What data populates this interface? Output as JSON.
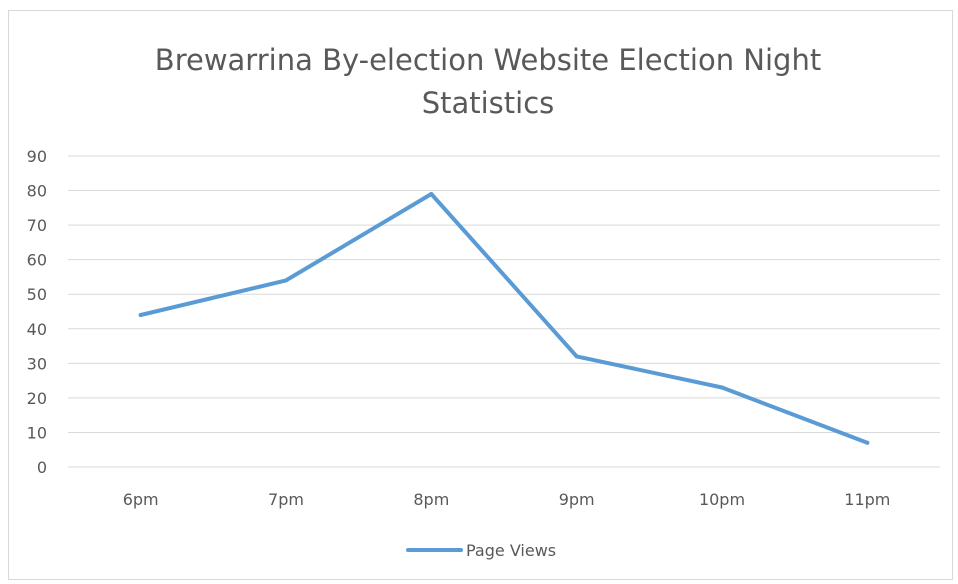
{
  "chart_data": {
    "type": "line",
    "title_lines": [
      "Brewarrina By-election Website Election Night",
      "Statistics"
    ],
    "categories": [
      "6pm",
      "7pm",
      "8pm",
      "9pm",
      "10pm",
      "11pm"
    ],
    "series": [
      {
        "name": "Page Views",
        "values": [
          44,
          54,
          79,
          32,
          23,
          7
        ],
        "color": "#5b9bd5"
      }
    ],
    "y_ticks": [
      "0",
      "10",
      "20",
      "30",
      "40",
      "50",
      "60",
      "70",
      "80",
      "90"
    ],
    "ylim": [
      0,
      90
    ],
    "xlabel": "",
    "ylabel": "",
    "grid": true,
    "legend_position": "bottom"
  },
  "colors": {
    "gridline": "#d9d9d9",
    "text": "#595959",
    "series": "#5b9bd5"
  }
}
